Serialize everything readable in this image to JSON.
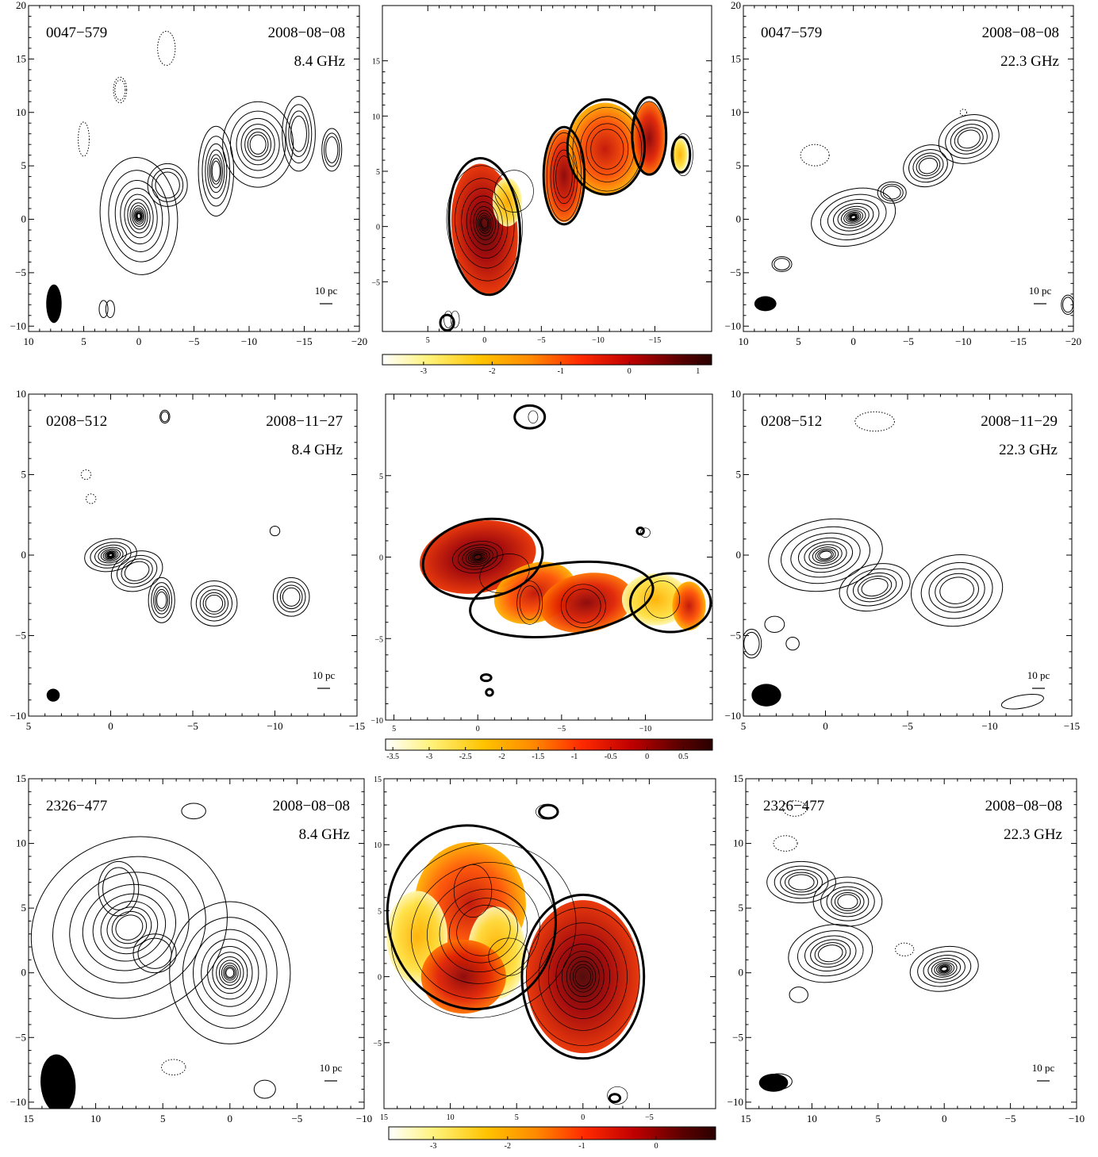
{
  "figure": {
    "rows": [
      {
        "source": "0047−579",
        "panels": [
          {
            "type": "contour",
            "source": "0047−579",
            "date": "2008−08−08",
            "freq": "8.4 GHz",
            "scale": "10 pc",
            "xlim": [
              10,
              -20
            ],
            "ylim": [
              -10.5,
              20
            ],
            "xticks": [
              "10",
              "5",
              "0",
              "−5",
              "−10",
              "−15",
              "−20"
            ],
            "yticks": [
              "20",
              "15",
              "10",
              "5",
              "0",
              "−5",
              "−10"
            ]
          },
          {
            "type": "spectral-index",
            "xlim": [
              9,
              -20
            ],
            "ylim": [
              -9.5,
              20
            ],
            "xticks": [
              "5",
              "0",
              "−5",
              "−10",
              "−15"
            ],
            "yticks": [
              "15",
              "10",
              "5",
              "0",
              "−5"
            ],
            "colorbar": {
              "ticks": [
                "-3",
                "-2",
                "-1",
                "0",
                "1"
              ],
              "range": [
                -3.6,
                1.2
              ]
            }
          },
          {
            "type": "contour",
            "source": "0047−579",
            "date": "2008−08−08",
            "freq": "22.3 GHz",
            "scale": "10 pc",
            "xlim": [
              10,
              -20
            ],
            "ylim": [
              -10.5,
              20
            ],
            "xticks": [
              "10",
              "5",
              "0",
              "−5",
              "−10",
              "−15",
              "−20"
            ],
            "yticks": [
              "20",
              "15",
              "10",
              "5",
              "0",
              "−5",
              "−10"
            ]
          }
        ]
      },
      {
        "source": "0208−512",
        "panels": [
          {
            "type": "contour",
            "source": "0208−512",
            "date": "2008−11−27",
            "freq": "8.4 GHz",
            "scale": "10 pc",
            "xlim": [
              5,
              -15
            ],
            "ylim": [
              -10,
              10
            ],
            "xticks": [
              "5",
              "0",
              "−5",
              "−10",
              "−15"
            ],
            "yticks": [
              "10",
              "5",
              "0",
              "−5",
              "−10"
            ]
          },
          {
            "type": "spectral-index",
            "xlim": [
              5.5,
              -14
            ],
            "ylim": [
              -10,
              10
            ],
            "xticks": [
              "5",
              "0",
              "−5",
              "−10"
            ],
            "yticks": [
              "5",
              "0",
              "−5",
              "−10"
            ],
            "colorbar": {
              "ticks": [
                "-3.5",
                "-3",
                "-2.5",
                "-2",
                "-1.5",
                "-1",
                "-0.5",
                "0",
                "0.5"
              ],
              "range": [
                -3.6,
                0.9
              ]
            }
          },
          {
            "type": "contour",
            "source": "0208−512",
            "date": "2008−11−29",
            "freq": "22.3 GHz",
            "scale": "10 pc",
            "xlim": [
              5,
              -15
            ],
            "ylim": [
              -10,
              10
            ],
            "xticks": [
              "5",
              "0",
              "−5",
              "−10",
              "−15"
            ],
            "yticks": [
              "10",
              "5",
              "0",
              "−5",
              "−10"
            ]
          }
        ]
      },
      {
        "source": "2326−477",
        "panels": [
          {
            "type": "contour",
            "source": "2326−477",
            "date": "2008−08−08",
            "freq": "8.4 GHz",
            "scale": "10 pc",
            "xlim": [
              15,
              -10
            ],
            "ylim": [
              -10.5,
              15
            ],
            "xticks": [
              "15",
              "10",
              "5",
              "0",
              "−5",
              "−10"
            ],
            "yticks": [
              "15",
              "10",
              "5",
              "0",
              "−5",
              "−10"
            ]
          },
          {
            "type": "spectral-index",
            "xlim": [
              15,
              -10
            ],
            "ylim": [
              -10,
              15
            ],
            "xticks": [
              "15",
              "10",
              "5",
              "0",
              "−5"
            ],
            "yticks": [
              "15",
              "10",
              "5",
              "0",
              "−5"
            ],
            "colorbar": {
              "ticks": [
                "-3",
                "-2",
                "-1",
                "0"
              ],
              "range": [
                -3.6,
                0.8
              ]
            }
          },
          {
            "type": "contour",
            "source": "2326−477",
            "date": "2008−08−08",
            "freq": "22.3 GHz",
            "scale": "10 pc",
            "xlim": [
              15,
              -10
            ],
            "ylim": [
              -10.5,
              15
            ],
            "xticks": [
              "15",
              "10",
              "5",
              "0",
              "−5",
              "−10"
            ],
            "yticks": [
              "15",
              "10",
              "5",
              "0",
              "−5",
              "−10"
            ]
          }
        ]
      }
    ]
  },
  "colors": {
    "ink": "#000000",
    "cmap": [
      "#ffffff",
      "#fff27a",
      "#ffc300",
      "#ff8a00",
      "#ff2a00",
      "#c00000",
      "#5a0000",
      "#2a0000"
    ]
  }
}
